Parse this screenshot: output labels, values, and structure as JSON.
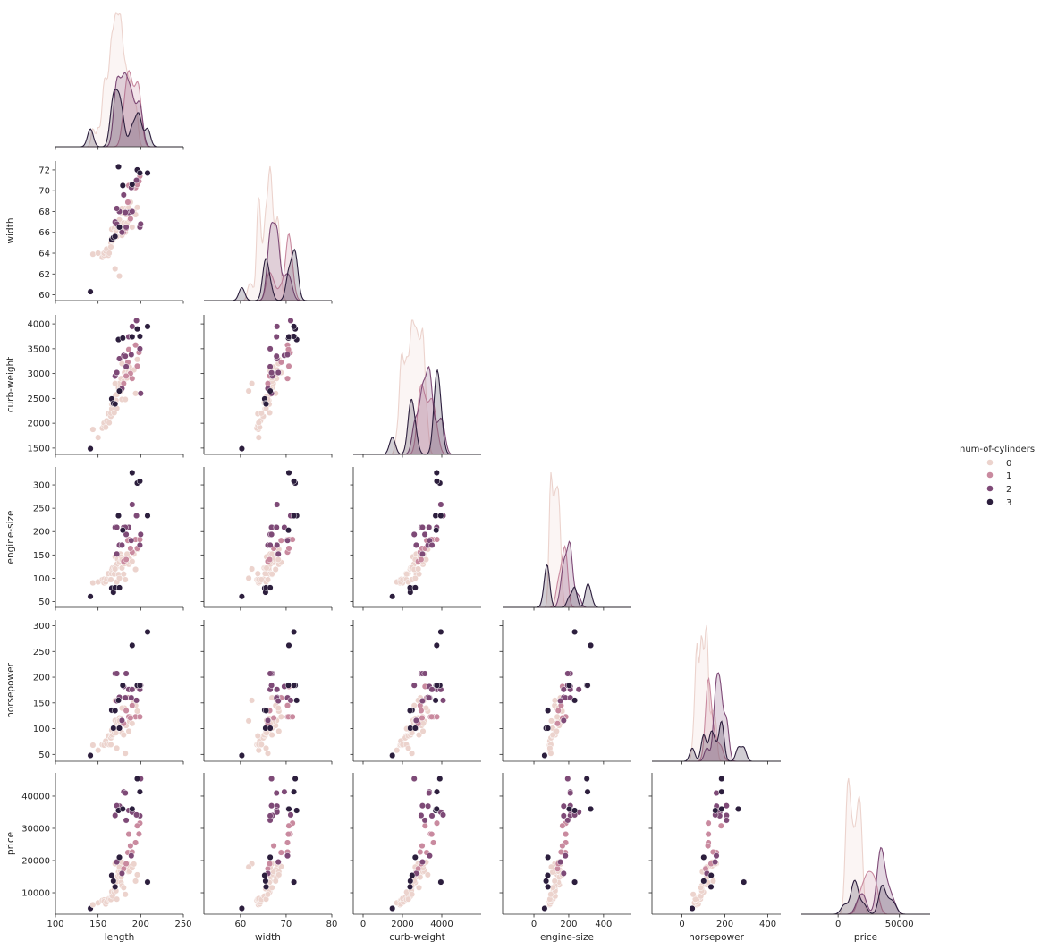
{
  "chart_data": {
    "type": "pairplot",
    "variables": [
      "length",
      "width",
      "curb-weight",
      "engine-size",
      "horsepower",
      "price"
    ],
    "corner": true,
    "hue": "num-of-cylinders",
    "legend": {
      "title": "num-of-cylinders",
      "position": "right",
      "entries": [
        {
          "label": "0",
          "color": "#ecd3cd"
        },
        {
          "label": "1",
          "color": "#c98a9f"
        },
        {
          "label": "2",
          "color": "#7e4a77"
        },
        {
          "label": "3",
          "color": "#2c1e3d"
        }
      ]
    },
    "axes": {
      "length": {
        "range": [
          100,
          250
        ],
        "ticks": [
          100,
          150,
          200,
          250
        ],
        "tick_labels": [
          "100",
          "150",
          "200",
          "250"
        ]
      },
      "width": {
        "range": [
          60,
          72
        ],
        "ticks": [
          60,
          62,
          64,
          66,
          68,
          70,
          72
        ],
        "tick_labels": [
          "60",
          "62",
          "64",
          "66",
          "68",
          "70",
          "72"
        ],
        "x_range": [
          52,
          80
        ],
        "x_ticks": [
          60,
          70,
          80
        ],
        "x_tick_labels": [
          "60",
          "70",
          "80"
        ]
      },
      "curb-weight": {
        "range": [
          1500,
          4000
        ],
        "ticks": [
          1500,
          2000,
          2500,
          3000,
          3500,
          4000
        ],
        "tick_labels": [
          "1500",
          "2000",
          "2500",
          "3000",
          "3500",
          "4000"
        ],
        "x_range": [
          -500,
          6000
        ],
        "x_ticks": [
          0,
          2000,
          4000
        ],
        "x_tick_labels": [
          "0",
          "2000",
          "4000"
        ]
      },
      "engine-size": {
        "range": [
          50,
          300
        ],
        "ticks": [
          50,
          100,
          150,
          200,
          250,
          300
        ],
        "tick_labels": [
          "50",
          "100",
          "150",
          "200",
          "250",
          "300"
        ],
        "x_range": [
          -180,
          560
        ],
        "x_ticks": [
          0,
          200,
          400
        ],
        "x_tick_labels": [
          "0",
          "200",
          "400"
        ]
      },
      "horsepower": {
        "range": [
          50,
          300
        ],
        "ticks": [
          50,
          100,
          150,
          200,
          250,
          300
        ],
        "tick_labels": [
          "50",
          "100",
          "150",
          "200",
          "250",
          "300"
        ],
        "x_range": [
          -140,
          460
        ],
        "x_ticks": [
          0,
          200,
          400
        ],
        "x_tick_labels": [
          "0",
          "200",
          "400"
        ]
      },
      "price": {
        "range": [
          10000,
          40000
        ],
        "ticks": [
          10000,
          20000,
          30000,
          40000
        ],
        "tick_labels": [
          "10000",
          "20000",
          "30000",
          "40000"
        ],
        "x_range": [
          -30000,
          75000
        ],
        "x_ticks": [
          0,
          50000
        ],
        "x_tick_labels": [
          "0",
          "50000"
        ]
      }
    },
    "kde_peaks": {
      "length": [
        0.24,
        0.02,
        0.03,
        0.01
      ],
      "width": [
        0.65,
        0.02,
        0.06,
        0.01
      ],
      "curb-weight": [
        0.0012,
        4e-05,
        0.0003,
        3e-05
      ],
      "engine-size": [
        0.02,
        0.001,
        0.002,
        0.0005
      ],
      "horsepower": [
        0.018,
        0.002,
        0.0025,
        0.0003
      ],
      "price": [
        0.00011,
        3e-06,
        6e-06,
        3e-06
      ]
    },
    "points": {
      "columns": [
        "length",
        "width",
        "curb-weight",
        "engine-size",
        "horsepower",
        "price",
        "num-of-cylinders"
      ],
      "rows": [
        [
          141,
          60.3,
          1488,
          61,
          48,
          5151,
          3
        ],
        [
          144,
          63.9,
          1874,
          90,
          68,
          6295,
          0
        ],
        [
          150,
          64.0,
          1713,
          92,
          58,
          6855,
          0
        ],
        [
          155,
          63.6,
          1900,
          97,
          69,
          7609,
          0
        ],
        [
          157,
          63.8,
          1950,
          98,
          70,
          7775,
          0
        ],
        [
          157,
          64.0,
          2004,
          90,
          68,
          7295,
          0
        ],
        [
          159,
          64.2,
          1918,
          92,
          76,
          6479,
          0
        ],
        [
          160,
          64.4,
          2050,
          98,
          70,
          7129,
          0
        ],
        [
          162,
          63.8,
          2190,
          110,
          86,
          8058,
          0
        ],
        [
          163,
          64.0,
          2010,
          97,
          69,
          8238,
          0
        ],
        [
          165,
          65.0,
          2140,
          98,
          82,
          8499,
          0
        ],
        [
          165,
          64.6,
          2202,
          97,
          69,
          7898,
          0
        ],
        [
          166,
          65.4,
          2290,
          110,
          86,
          9095,
          0
        ],
        [
          166,
          66.3,
          2385,
          120,
          97,
          10345,
          0
        ],
        [
          167,
          65.2,
          2414,
          122,
          88,
          8948,
          0
        ],
        [
          169,
          66.4,
          2212,
          109,
          100,
          10198,
          0
        ],
        [
          169,
          65.5,
          2465,
          122,
          92,
          11245,
          0
        ],
        [
          170,
          65.7,
          2535,
          146,
          116,
          12440,
          0
        ],
        [
          171,
          66.2,
          2460,
          122,
          92,
          10595,
          0
        ],
        [
          172,
          66.5,
          2579,
          130,
          111,
          13499,
          0
        ],
        [
          172,
          65.6,
          2300,
          92,
          62,
          7999,
          0
        ],
        [
          173,
          66.6,
          2756,
          141,
          114,
          15040,
          0
        ],
        [
          174,
          66.9,
          2710,
          108,
          101,
          16430,
          0
        ],
        [
          175,
          67.2,
          2800,
          134,
          121,
          15645,
          0
        ],
        [
          176,
          66.5,
          2700,
          152,
          111,
          16900,
          0
        ],
        [
          177,
          66.3,
          2650,
          140,
          120,
          13200,
          0
        ],
        [
          177,
          67.9,
          2900,
          146,
          116,
          14869,
          0
        ],
        [
          178,
          65.7,
          2480,
          122,
          92,
          12170,
          0
        ],
        [
          180,
          66.9,
          2843,
          109,
          88,
          11595,
          0
        ],
        [
          181,
          68.3,
          3020,
          131,
          140,
          18344,
          0
        ],
        [
          182,
          66.0,
          2480,
          97,
          52,
          9495,
          0
        ],
        [
          183,
          67.7,
          2970,
          145,
          106,
          17199,
          0
        ],
        [
          184,
          66.9,
          2910,
          152,
          160,
          19045,
          0
        ],
        [
          186,
          68.4,
          3045,
          130,
          95,
          16500,
          0
        ],
        [
          187,
          67.2,
          3130,
          141,
          114,
          16630,
          0
        ],
        [
          188,
          68.9,
          3020,
          134,
          123,
          18150,
          0
        ],
        [
          190,
          66.5,
          3055,
          136,
          110,
          17710,
          0
        ],
        [
          192,
          68.0,
          3075,
          152,
          154,
          18920,
          0
        ],
        [
          194,
          67.7,
          2600,
          119,
          145,
          13645,
          0
        ],
        [
          196,
          68.4,
          3285,
          162,
          134,
          15580,
          0
        ],
        [
          170,
          62.5,
          2800,
          120,
          155,
          19000,
          0
        ],
        [
          175,
          61.8,
          2650,
          100,
          115,
          18000,
          0
        ],
        [
          178,
          68.3,
          3200,
          140,
          140,
          19500,
          0
        ],
        [
          198,
          70.9,
          3425,
          183,
          123,
          28248,
          1
        ],
        [
          194,
          70.3,
          3575,
          183,
          123,
          25552,
          1
        ],
        [
          186,
          70.5,
          3485,
          183,
          123,
          28176,
          1
        ],
        [
          199,
          71.4,
          3750,
          183,
          123,
          31600,
          1
        ],
        [
          185,
          68.9,
          3230,
          181,
          160,
          22470,
          1
        ],
        [
          190,
          70.3,
          2900,
          156,
          145,
          22625,
          1
        ],
        [
          180,
          66.0,
          2800,
          136,
          110,
          17450,
          1
        ],
        [
          188,
          67.3,
          3000,
          164,
          121,
          24565,
          1
        ],
        [
          196,
          70.6,
          3150,
          164,
          182,
          30760,
          1
        ],
        [
          183,
          66.4,
          2950,
          140,
          135,
          19000,
          1
        ],
        [
          175,
          68.0,
          3300,
          171,
          161,
          36880,
          2
        ],
        [
          170,
          67.0,
          2950,
          209,
          207,
          34028,
          2
        ],
        [
          172,
          66.8,
          3016,
          209,
          207,
          37028,
          2
        ],
        [
          180,
          69.6,
          3366,
          209,
          182,
          41315,
          2
        ],
        [
          183,
          66.5,
          3139,
          194,
          207,
          32528,
          2
        ],
        [
          186,
          67.9,
          3740,
          209,
          176,
          35550,
          2
        ],
        [
          190,
          68.0,
          3950,
          258,
          176,
          35056,
          2
        ],
        [
          189,
          70.3,
          3380,
          181,
          160,
          21485,
          2
        ],
        [
          178,
          66.0,
          2700,
          171,
          116,
          15998,
          2
        ],
        [
          199,
          66.5,
          3500,
          171,
          176,
          33900,
          2
        ],
        [
          195,
          71.0,
          4066,
          234,
          155,
          34184,
          2
        ],
        [
          182,
          67.9,
          3350,
          209,
          160,
          40960,
          2
        ],
        [
          200,
          66.8,
          2600,
          194,
          184,
          45400,
          2
        ],
        [
          172,
          68.3,
          3020,
          152,
          154,
          19550,
          2
        ],
        [
          166,
          65.3,
          2490,
          79,
          136,
          15400,
          3
        ],
        [
          168,
          65.5,
          2400,
          70,
          101,
          13645,
          3
        ],
        [
          170,
          65.6,
          2388,
          80,
          135,
          11850,
          3
        ],
        [
          175,
          66.5,
          2650,
          80,
          101,
          21000,
          3
        ],
        [
          174,
          72.3,
          3685,
          234,
          155,
          35550,
          3
        ],
        [
          179,
          70.5,
          3715,
          203,
          184,
          36000,
          3
        ],
        [
          190,
          70.6,
          3740,
          326,
          262,
          36000,
          3
        ],
        [
          196,
          72.0,
          3900,
          304,
          184,
          45400,
          3
        ],
        [
          199,
          71.7,
          3750,
          308,
          184,
          41315,
          3
        ],
        [
          208,
          71.7,
          3950,
          234,
          288,
          13300,
          3
        ]
      ]
    }
  }
}
